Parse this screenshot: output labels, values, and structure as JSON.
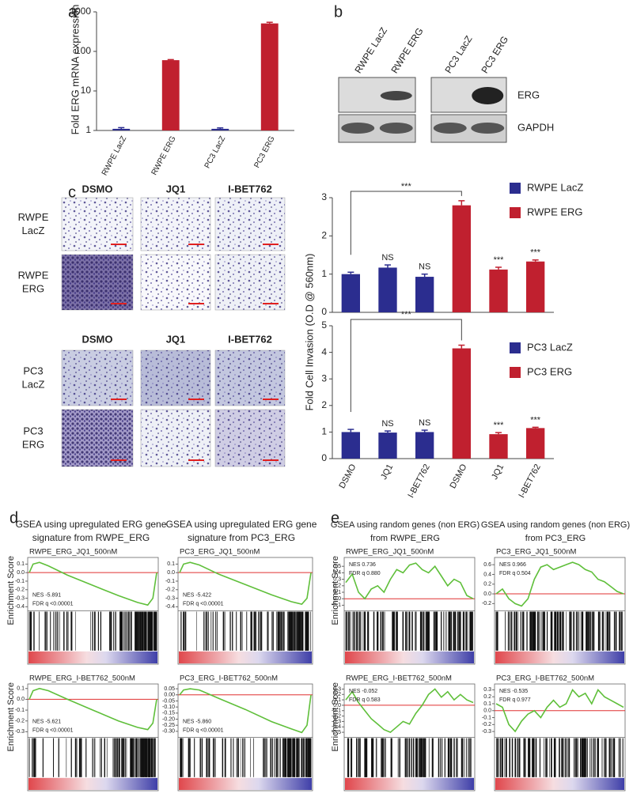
{
  "panel_labels": [
    "a",
    "b",
    "c",
    "d",
    "e"
  ],
  "blot": {
    "lanes": [
      "RWPE LacZ",
      "RWPE ERG",
      "PC3 LacZ",
      "PC3 ERG"
    ],
    "rows": [
      "ERG",
      "GAPDH"
    ]
  },
  "micrographs": [
    {
      "columns": [
        "DSMO",
        "JQ1",
        "I-BET762"
      ],
      "rows": [
        [
          "RWPE",
          "LacZ"
        ],
        [
          "RWPE",
          "ERG"
        ]
      ]
    },
    {
      "columns": [
        "DSMO",
        "JQ1",
        "I-BET762"
      ],
      "rows": [
        [
          "PC3",
          "LacZ"
        ],
        [
          "PC3",
          "ERG"
        ]
      ]
    }
  ],
  "gsea_headers": [
    [
      "GSEA using upregulated ERG gene",
      "signature from RWPE_ERG"
    ],
    [
      "GSEA using upregulated ERG gene",
      "signature from PC3_ERG"
    ],
    [
      "GSEA using random genes (non ERG)",
      "from RWPE_ERG"
    ],
    [
      "GSEA using random genes (non ERG)",
      "from PC3_ERG"
    ]
  ],
  "chart_data": [
    {
      "type": "bar",
      "ylabel": "Fold ERG mRNA expression",
      "log_scale": true,
      "categories": [
        "RWPE LacZ",
        "RWPE ERG",
        "PC3 LacZ",
        "PC3 ERG"
      ],
      "values": [
        1.1,
        60,
        1.1,
        510
      ],
      "errors": [
        0.08,
        2,
        0.06,
        35
      ],
      "colors": [
        "#2b2d8f",
        "#c0202f",
        "#2b2d8f",
        "#c0202f"
      ],
      "ylim": [
        1,
        1000
      ],
      "yticks": [
        1,
        10,
        100,
        1000
      ]
    },
    {
      "type": "bar",
      "series": [
        {
          "name": "RWPE LacZ",
          "color": "#2b2d8f",
          "values": [
            1.0,
            1.17,
            0.93,
            null,
            null,
            null
          ],
          "errors": [
            0.05,
            0.07,
            0.07,
            null,
            null,
            null
          ]
        },
        {
          "name": "RWPE ERG",
          "color": "#c0202f",
          "values": [
            null,
            null,
            null,
            2.8,
            1.12,
            1.33
          ],
          "errors": [
            null,
            null,
            null,
            0.12,
            0.06,
            0.04
          ]
        }
      ],
      "annotations": [
        null,
        "NS",
        "NS",
        null,
        "***",
        "***"
      ],
      "bracket_label": "***",
      "ylim": [
        0,
        3
      ],
      "yticks": [
        0,
        1,
        2,
        3
      ]
    },
    {
      "type": "bar",
      "ylabel": "Fold Cell Invasion (O.D @ 560nm)",
      "categories": [
        "DSMO",
        "JQ1",
        "I-BET762",
        "DSMO",
        "JQ1",
        "I-BET762"
      ],
      "series": [
        {
          "name": "PC3 LacZ",
          "color": "#2b2d8f",
          "values": [
            1.0,
            0.98,
            1.0,
            null,
            null,
            null
          ],
          "errors": [
            0.1,
            0.06,
            0.07,
            null,
            null,
            null
          ]
        },
        {
          "name": "PC3 ERG",
          "color": "#c0202f",
          "values": [
            null,
            null,
            null,
            4.15,
            0.92,
            1.15
          ],
          "errors": [
            null,
            null,
            null,
            0.12,
            0.06,
            0.03
          ]
        }
      ],
      "annotations": [
        null,
        "NS",
        "NS",
        null,
        "***",
        "***"
      ],
      "bracket_label": "***",
      "ylim": [
        0,
        5
      ],
      "yticks": [
        0,
        1,
        2,
        3,
        4,
        5
      ]
    },
    {
      "type": "line",
      "title": "RWPE_ERG_JQ1_500nM",
      "ylabel": "Enrichment Score",
      "annotations": [
        "NES -5.891",
        "FDR q <0.00001"
      ],
      "annotation_corner": "bottom-left",
      "color": "#5fbf3a",
      "x": [
        0,
        0.03,
        0.08,
        0.15,
        0.3,
        0.5,
        0.7,
        0.85,
        0.93,
        0.97,
        1
      ],
      "values": [
        0,
        0.1,
        0.12,
        0.08,
        -0.03,
        -0.15,
        -0.27,
        -0.35,
        -0.38,
        -0.3,
        0
      ],
      "ylim": [
        -0.42,
        0.15
      ],
      "yticks": [
        0.1,
        {
          "value": 0,
          "label": "0.0"
        },
        -0.1,
        -0.2,
        -0.3,
        -0.4
      ]
    },
    {
      "type": "line",
      "title": "PC3_ERG_JQ1_500nM",
      "annotations": [
        "NES -5.422",
        "FDR q <0.00001"
      ],
      "annotation_corner": "bottom-left",
      "color": "#5fbf3a",
      "x": [
        0,
        0.03,
        0.08,
        0.15,
        0.3,
        0.5,
        0.7,
        0.85,
        0.93,
        0.97,
        1
      ],
      "values": [
        0,
        0.1,
        0.12,
        0.09,
        -0.02,
        -0.14,
        -0.26,
        -0.34,
        -0.37,
        -0.3,
        0
      ],
      "ylim": [
        -0.42,
        0.15
      ],
      "yticks": [
        0.1,
        {
          "value": 0,
          "label": "0.0"
        },
        -0.1,
        -0.2,
        -0.3,
        -0.4
      ]
    },
    {
      "type": "line",
      "title": "RWPE_ERG_I-BET762_500nM",
      "ylabel": "Enrichment Score",
      "annotations": [
        "NES -5.621",
        "FDR q <0.00001"
      ],
      "annotation_corner": "bottom-left",
      "color": "#5fbf3a",
      "x": [
        0,
        0.03,
        0.08,
        0.15,
        0.3,
        0.5,
        0.7,
        0.85,
        0.93,
        0.97,
        1
      ],
      "values": [
        0,
        0.08,
        0.1,
        0.08,
        0.0,
        -0.1,
        -0.2,
        -0.26,
        -0.28,
        -0.22,
        0
      ],
      "ylim": [
        -0.33,
        0.12
      ],
      "yticks": [
        0.1,
        {
          "value": 0,
          "label": "0.0"
        },
        -0.1,
        -0.2,
        -0.3
      ]
    },
    {
      "type": "line",
      "title": "PC3_ERG_I-BET762_500nM",
      "annotations": [
        "NES -5.860",
        "FDR q <0.00001"
      ],
      "annotation_corner": "bottom-left",
      "color": "#5fbf3a",
      "x": [
        0,
        0.03,
        0.08,
        0.15,
        0.3,
        0.5,
        0.7,
        0.85,
        0.93,
        0.97,
        1
      ],
      "values": [
        0,
        0.04,
        0.05,
        0.04,
        -0.03,
        -0.12,
        -0.22,
        -0.28,
        -0.31,
        -0.25,
        0
      ],
      "ylim": [
        -0.33,
        0.07
      ],
      "yticks": [
        0.05,
        {
          "value": 0,
          "label": "0.00"
        },
        -0.05,
        {
          "value": -0.1,
          "label": "-0.10"
        },
        -0.15,
        {
          "value": -0.2,
          "label": "-0.20"
        },
        -0.25,
        {
          "value": -0.3,
          "label": "-0.30"
        }
      ]
    },
    {
      "type": "line",
      "title": "RWPE_ERG_JQ1_500nM",
      "ylabel": "Enrichment Score",
      "annotations": [
        "NES 0.736",
        "FDR q 0.880"
      ],
      "annotation_corner": "top-left",
      "color": "#5fbf3a",
      "x": [
        0,
        0.05,
        0.1,
        0.15,
        0.2,
        0.25,
        0.3,
        0.35,
        0.4,
        0.45,
        0.5,
        0.55,
        0.6,
        0.65,
        0.7,
        0.75,
        0.8,
        0.85,
        0.9,
        0.95,
        1
      ],
      "values": [
        0.25,
        0.38,
        0.1,
        0.0,
        0.15,
        0.2,
        0.1,
        0.3,
        0.45,
        0.4,
        0.52,
        0.55,
        0.45,
        0.4,
        0.5,
        0.35,
        0.2,
        0.3,
        0.25,
        0.05,
        0.0
      ],
      "ylim": [
        -0.15,
        0.6
      ],
      "yticks": [
        0.5,
        0.4,
        0.3,
        0.2,
        0.1,
        {
          "value": 0,
          "label": "0.0"
        },
        -0.1
      ]
    },
    {
      "type": "line",
      "title": "PC3_ERG_JQ1_500nM",
      "annotations": [
        "NES 0.966",
        "FDR q 0.504"
      ],
      "annotation_corner": "top-left",
      "color": "#5fbf3a",
      "x": [
        0,
        0.05,
        0.1,
        0.15,
        0.2,
        0.25,
        0.3,
        0.35,
        0.4,
        0.45,
        0.5,
        0.55,
        0.6,
        0.65,
        0.7,
        0.75,
        0.8,
        0.85,
        0.9,
        0.95,
        1
      ],
      "values": [
        0,
        0.1,
        -0.1,
        -0.2,
        -0.25,
        -0.1,
        0.3,
        0.55,
        0.6,
        0.5,
        0.55,
        0.6,
        0.65,
        0.6,
        0.5,
        0.45,
        0.3,
        0.25,
        0.15,
        0.05,
        0
      ],
      "ylim": [
        -0.3,
        0.7
      ],
      "yticks": [
        0.6,
        0.4,
        0.2,
        {
          "value": 0,
          "label": "0.0"
        },
        -0.2
      ]
    },
    {
      "type": "line",
      "title": "RWPE_ERG_I-BET762_500nM",
      "ylabel": "Enrichment Score",
      "annotations": [
        "NES -0.052",
        "FDR q 0.583"
      ],
      "annotation_corner": "top-left",
      "color": "#5fbf3a",
      "x": [
        0,
        0.05,
        0.1,
        0.15,
        0.2,
        0.25,
        0.3,
        0.35,
        0.4,
        0.45,
        0.5,
        0.55,
        0.6,
        0.65,
        0.7,
        0.75,
        0.8,
        0.85,
        0.9,
        0.95,
        1
      ],
      "values": [
        0.1,
        0.25,
        0.05,
        -0.1,
        -0.25,
        -0.35,
        -0.45,
        -0.5,
        -0.4,
        -0.3,
        -0.35,
        -0.15,
        0.0,
        0.2,
        0.3,
        0.15,
        0.25,
        0.1,
        0.2,
        0.1,
        0.05
      ],
      "ylim": [
        -0.55,
        0.35
      ],
      "yticks": [
        0.3,
        0.2,
        0.1,
        {
          "value": 0,
          "label": "0.0"
        },
        -0.1,
        -0.2,
        -0.3,
        -0.4,
        -0.5
      ]
    },
    {
      "type": "line",
      "title": "PC3_ERG_I-BET762_500nM",
      "annotations": [
        "NES -0.535",
        "FDR q 0.977"
      ],
      "annotation_corner": "top-left",
      "color": "#5fbf3a",
      "x": [
        0,
        0.05,
        0.1,
        0.15,
        0.2,
        0.25,
        0.3,
        0.35,
        0.4,
        0.45,
        0.5,
        0.55,
        0.6,
        0.65,
        0.7,
        0.75,
        0.8,
        0.85,
        0.9,
        0.95,
        1
      ],
      "values": [
        0.1,
        0.05,
        -0.2,
        -0.3,
        -0.15,
        -0.05,
        0.0,
        -0.1,
        0.05,
        0.15,
        0.05,
        0.1,
        0.3,
        0.2,
        0.25,
        0.1,
        0.3,
        0.2,
        0.15,
        0.1,
        0.05
      ],
      "ylim": [
        -0.35,
        0.35
      ],
      "yticks": [
        0.3,
        0.2,
        0.1,
        {
          "value": 0,
          "label": "0.0"
        },
        -0.1,
        -0.2,
        -0.3
      ]
    }
  ]
}
